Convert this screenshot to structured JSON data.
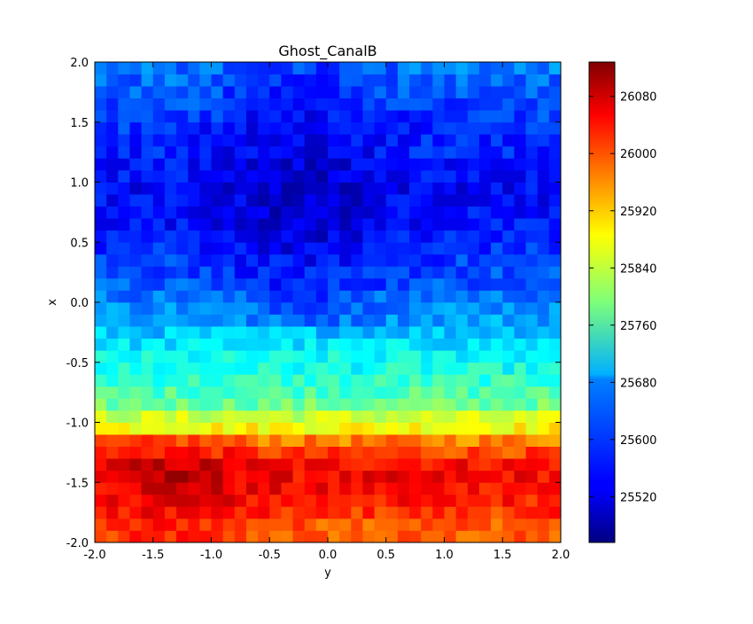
{
  "chart_data": {
    "type": "heatmap",
    "title": "Ghost_CanalB",
    "xlabel": "y",
    "ylabel": "x",
    "xlim": [
      -2.0,
      2.0
    ],
    "ylim": [
      -2.0,
      2.0
    ],
    "x_ticks": [
      "-2.0",
      "-1.5",
      "-1.0",
      "-0.5",
      "0.0",
      "0.5",
      "1.0",
      "1.5",
      "2.0"
    ],
    "y_ticks": [
      "-2.0",
      "-1.5",
      "-1.0",
      "-0.5",
      "0.0",
      "0.5",
      "1.0",
      "1.5",
      "2.0"
    ],
    "colorbar": {
      "min": 25456,
      "max": 26128,
      "ticks": [
        "25520",
        "25600",
        "25680",
        "25760",
        "25840",
        "25920",
        "26000",
        "26080"
      ],
      "colormap": "jet"
    },
    "grid": false,
    "grid_size": [
      40,
      40
    ],
    "row_profile_note": "",
    "rows_x_centers": [
      -1.95,
      -1.85,
      -1.75,
      -1.65,
      -1.55,
      -1.45,
      -1.35,
      -1.25,
      -1.15,
      -1.05,
      -0.95,
      -0.85,
      -0.75,
      -0.65,
      -0.55,
      -0.45,
      -0.35,
      -0.25,
      -0.15,
      -0.05,
      0.05,
      0.15,
      0.25,
      0.35,
      0.45,
      0.55,
      0.65,
      0.75,
      0.85,
      0.95,
      1.05,
      1.15,
      1.25,
      1.35,
      1.45,
      1.55,
      1.65,
      1.75,
      1.85,
      1.95
    ],
    "row_mean_values": [
      25980,
      25990,
      26010,
      26030,
      26040,
      26045,
      26040,
      26000,
      25960,
      25880,
      25840,
      25780,
      25760,
      25740,
      25720,
      25710,
      25690,
      25670,
      25650,
      25640,
      25620,
      25600,
      25590,
      25580,
      25570,
      25560,
      25550,
      25545,
      25545,
      25540,
      25550,
      25555,
      25560,
      25565,
      25570,
      25580,
      25590,
      25600,
      25610,
      25620
    ]
  }
}
